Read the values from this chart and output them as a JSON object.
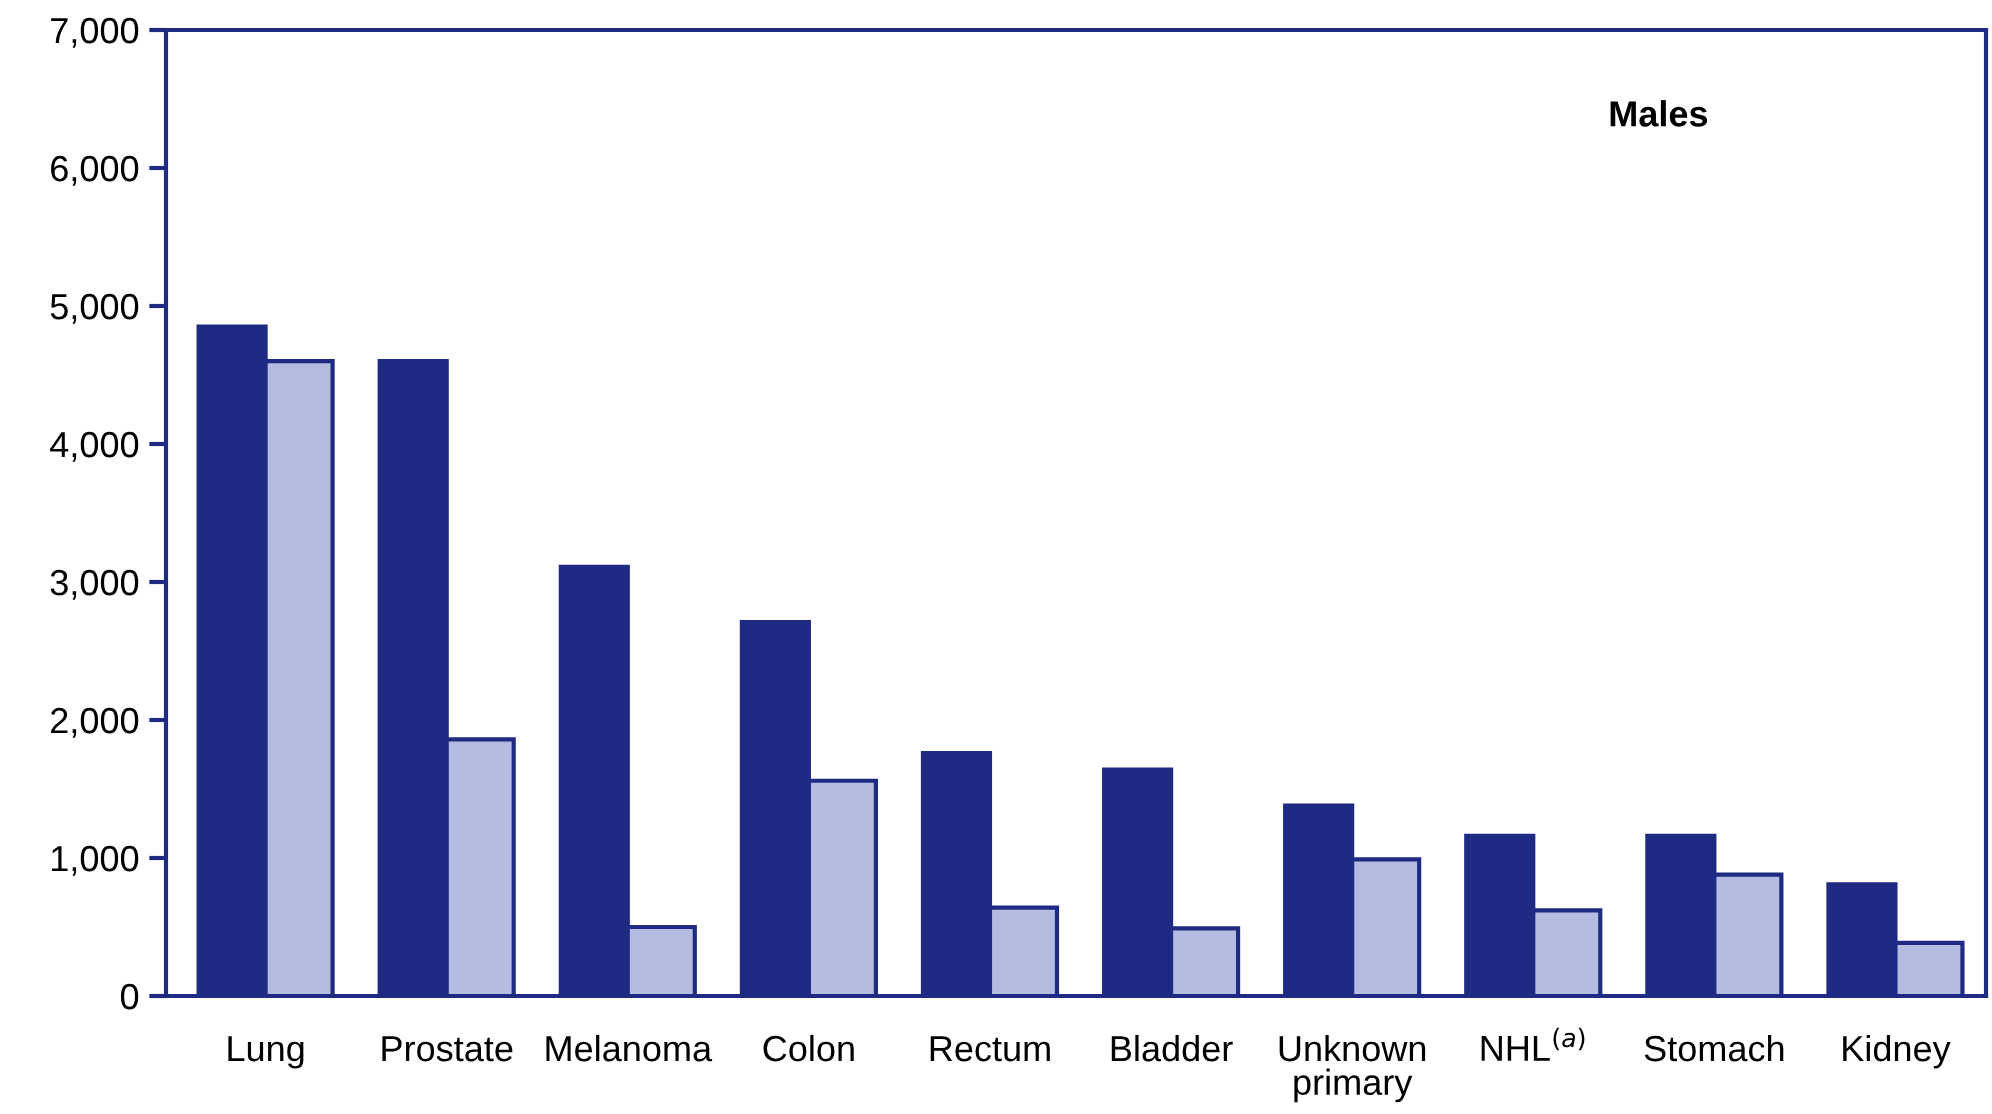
{
  "chart_data": {
    "type": "bar",
    "categories": [
      "Lung",
      "Prostate",
      "Melanoma",
      "Colon",
      "Rectum",
      "Bladder",
      "Unknown\nprimary",
      "NHL$^{(a)}$",
      "Stomach",
      "Kidney"
    ],
    "series": [
      {
        "color": "#1f2a82",
        "values": [
          4850,
          4600,
          3110,
          2710,
          1760,
          1640,
          1380,
          1160,
          1160,
          810
        ]
      },
      {
        "color": "#b4bce2",
        "values": [
          4600,
          1860,
          500,
          1560,
          640,
          490,
          990,
          620,
          880,
          385
        ]
      }
    ],
    "ylim": [
      0,
      7000
    ],
    "yticks": [
      {
        "value": 0,
        "label": "0"
      },
      {
        "value": 1000,
        "label": "1,000"
      },
      {
        "value": 2000,
        "label": "2,000"
      },
      {
        "value": 3000,
        "label": "3,000"
      },
      {
        "value": 4000,
        "label": "4,000"
      },
      {
        "value": 5000,
        "label": "5,000"
      },
      {
        "value": 6000,
        "label": "6,000"
      },
      {
        "value": 7000,
        "label": "7,000"
      }
    ],
    "annotations": [
      "Males"
    ],
    "grid": false,
    "legend": false
  }
}
